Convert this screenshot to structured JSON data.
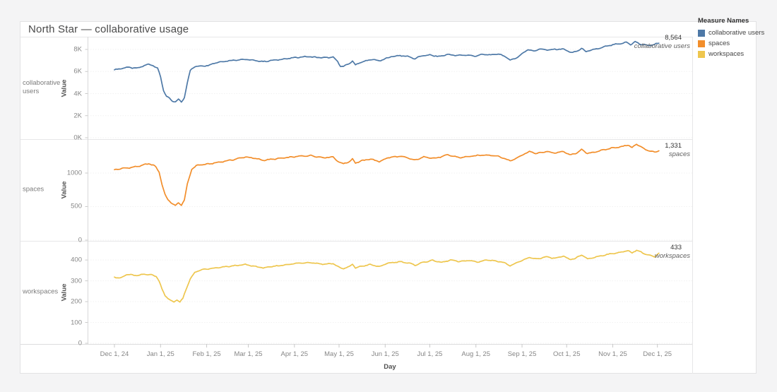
{
  "page": {
    "title": "North Star — collaborative usage"
  },
  "legend": {
    "title": "Measure Names",
    "items": [
      {
        "label": "collaborative users",
        "color": "#4e79a7",
        "highlighted": true
      },
      {
        "label": "spaces",
        "color": "#f28e2b",
        "highlighted": false
      },
      {
        "label": "workspaces",
        "color": "#eec64e",
        "highlighted": false
      }
    ]
  },
  "axes": {
    "x_title": "Day",
    "y_title": "Value",
    "x_tick_labels": [
      "Dec 1, 24",
      "Jan 1, 25",
      "Feb 1, 25",
      "Mar 1, 25",
      "Apr 1, 25",
      "May 1, 25",
      "Jun 1, 25",
      "Jul 1, 25",
      "Aug 1, 25",
      "Sep 1, 25",
      "Oct 1, 25",
      "Nov 1, 25",
      "Dec 1, 25"
    ]
  },
  "chart_data": {
    "type": "line",
    "x_unit": "days since Dec 1, 2024",
    "x_range": [
      0,
      366
    ],
    "grid": "faint horizontal gridlines at y ticks",
    "legend_position": "top-right",
    "panels": [
      {
        "row_label": "collaborative users",
        "color": "#4e79a7",
        "y_domain": [
          0,
          9152
        ],
        "y_ticks": [
          {
            "v": 0,
            "label": "0K"
          },
          {
            "v": 2000,
            "label": "2K"
          },
          {
            "v": 4000,
            "label": "4K"
          },
          {
            "v": 6000,
            "label": "6K"
          },
          {
            "v": 8000,
            "label": "8K"
          }
        ],
        "end_annotation": {
          "value": "8,564",
          "label": "collaborative users"
        },
        "daily_noise": 55,
        "anchors": [
          [
            0,
            6150
          ],
          [
            4,
            6250
          ],
          [
            8,
            6380
          ],
          [
            12,
            6330
          ],
          [
            16,
            6300
          ],
          [
            20,
            6550
          ],
          [
            23,
            6650
          ],
          [
            26,
            6550
          ],
          [
            29,
            6300
          ],
          [
            31,
            5500
          ],
          [
            33,
            4300
          ],
          [
            35,
            3750
          ],
          [
            37,
            3550
          ],
          [
            39,
            3300
          ],
          [
            41,
            3250
          ],
          [
            43,
            3500
          ],
          [
            45,
            3200
          ],
          [
            47,
            3650
          ],
          [
            49,
            5000
          ],
          [
            51,
            6100
          ],
          [
            54,
            6450
          ],
          [
            58,
            6500
          ],
          [
            63,
            6550
          ],
          [
            68,
            6800
          ],
          [
            75,
            6950
          ],
          [
            82,
            7050
          ],
          [
            88,
            7100
          ],
          [
            94,
            7000
          ],
          [
            100,
            6900
          ],
          [
            106,
            7000
          ],
          [
            112,
            7100
          ],
          [
            118,
            7200
          ],
          [
            124,
            7300
          ],
          [
            130,
            7350
          ],
          [
            136,
            7280
          ],
          [
            142,
            7250
          ],
          [
            147,
            7300
          ],
          [
            150,
            6900
          ],
          [
            152,
            6500
          ],
          [
            154,
            6450
          ],
          [
            157,
            6650
          ],
          [
            160,
            6950
          ],
          [
            162,
            6600
          ],
          [
            165,
            6800
          ],
          [
            170,
            7000
          ],
          [
            174,
            7100
          ],
          [
            178,
            6950
          ],
          [
            182,
            7150
          ],
          [
            186,
            7350
          ],
          [
            192,
            7450
          ],
          [
            198,
            7350
          ],
          [
            202,
            7150
          ],
          [
            206,
            7400
          ],
          [
            212,
            7500
          ],
          [
            218,
            7350
          ],
          [
            224,
            7550
          ],
          [
            230,
            7450
          ],
          [
            236,
            7500
          ],
          [
            242,
            7400
          ],
          [
            248,
            7550
          ],
          [
            254,
            7500
          ],
          [
            258,
            7600
          ],
          [
            262,
            7400
          ],
          [
            266,
            7050
          ],
          [
            269,
            7150
          ],
          [
            272,
            7400
          ],
          [
            275,
            7700
          ],
          [
            278,
            8000
          ],
          [
            282,
            7850
          ],
          [
            286,
            8050
          ],
          [
            291,
            7950
          ],
          [
            296,
            8000
          ],
          [
            301,
            8050
          ],
          [
            305,
            7850
          ],
          [
            308,
            7700
          ],
          [
            311,
            7850
          ],
          [
            314,
            8100
          ],
          [
            317,
            7800
          ],
          [
            321,
            7950
          ],
          [
            326,
            8100
          ],
          [
            331,
            8300
          ],
          [
            336,
            8450
          ],
          [
            340,
            8500
          ],
          [
            344,
            8650
          ],
          [
            347,
            8450
          ],
          [
            350,
            8700
          ],
          [
            353,
            8500
          ],
          [
            357,
            8400
          ],
          [
            360,
            8350
          ],
          [
            363,
            8480
          ],
          [
            366,
            8564
          ]
        ]
      },
      {
        "row_label": "spaces",
        "color": "#f28e2b",
        "y_domain": [
          0,
          1505
        ],
        "y_ticks": [
          {
            "v": 0,
            "label": "0"
          },
          {
            "v": 500,
            "label": "500"
          },
          {
            "v": 1000,
            "label": "1000"
          }
        ],
        "end_annotation": {
          "value": "1,331",
          "label": "spaces"
        },
        "daily_noise": 9,
        "anchors": [
          [
            0,
            1050
          ],
          [
            6,
            1070
          ],
          [
            12,
            1085
          ],
          [
            18,
            1110
          ],
          [
            23,
            1140
          ],
          [
            27,
            1110
          ],
          [
            30,
            1020
          ],
          [
            32,
            830
          ],
          [
            34,
            680
          ],
          [
            36,
            600
          ],
          [
            39,
            545
          ],
          [
            41,
            510
          ],
          [
            43,
            560
          ],
          [
            45,
            520
          ],
          [
            47,
            600
          ],
          [
            49,
            830
          ],
          [
            52,
            1060
          ],
          [
            56,
            1120
          ],
          [
            62,
            1130
          ],
          [
            70,
            1160
          ],
          [
            80,
            1200
          ],
          [
            88,
            1240
          ],
          [
            94,
            1220
          ],
          [
            100,
            1190
          ],
          [
            108,
            1210
          ],
          [
            116,
            1230
          ],
          [
            124,
            1250
          ],
          [
            132,
            1260
          ],
          [
            140,
            1230
          ],
          [
            147,
            1240
          ],
          [
            151,
            1160
          ],
          [
            154,
            1140
          ],
          [
            158,
            1170
          ],
          [
            160,
            1210
          ],
          [
            162,
            1150
          ],
          [
            166,
            1180
          ],
          [
            172,
            1210
          ],
          [
            178,
            1170
          ],
          [
            184,
            1230
          ],
          [
            192,
            1250
          ],
          [
            198,
            1220
          ],
          [
            202,
            1190
          ],
          [
            208,
            1240
          ],
          [
            216,
            1220
          ],
          [
            224,
            1270
          ],
          [
            232,
            1230
          ],
          [
            240,
            1250
          ],
          [
            248,
            1270
          ],
          [
            256,
            1260
          ],
          [
            262,
            1220
          ],
          [
            266,
            1180
          ],
          [
            270,
            1220
          ],
          [
            275,
            1280
          ],
          [
            279,
            1320
          ],
          [
            284,
            1290
          ],
          [
            290,
            1320
          ],
          [
            296,
            1300
          ],
          [
            302,
            1320
          ],
          [
            306,
            1270
          ],
          [
            310,
            1290
          ],
          [
            314,
            1350
          ],
          [
            318,
            1290
          ],
          [
            324,
            1320
          ],
          [
            330,
            1350
          ],
          [
            336,
            1380
          ],
          [
            341,
            1390
          ],
          [
            345,
            1420
          ],
          [
            348,
            1380
          ],
          [
            351,
            1430
          ],
          [
            354,
            1390
          ],
          [
            357,
            1350
          ],
          [
            360,
            1330
          ],
          [
            363,
            1310
          ],
          [
            366,
            1331
          ]
        ]
      },
      {
        "row_label": "workspaces",
        "color": "#eec64e",
        "y_domain": [
          0,
          492
        ],
        "y_ticks": [
          {
            "v": 0,
            "label": "0"
          },
          {
            "v": 100,
            "label": "100"
          },
          {
            "v": 200,
            "label": "200"
          },
          {
            "v": 300,
            "label": "300"
          },
          {
            "v": 400,
            "label": "400"
          }
        ],
        "end_annotation": {
          "value": "433",
          "label": "workspaces"
        },
        "daily_noise": 2.6,
        "anchors": [
          [
            0,
            318
          ],
          [
            4,
            312
          ],
          [
            8,
            330
          ],
          [
            12,
            328
          ],
          [
            16,
            325
          ],
          [
            20,
            332
          ],
          [
            24,
            330
          ],
          [
            28,
            322
          ],
          [
            30,
            300
          ],
          [
            32,
            260
          ],
          [
            34,
            230
          ],
          [
            36,
            215
          ],
          [
            38,
            205
          ],
          [
            40,
            197
          ],
          [
            42,
            210
          ],
          [
            44,
            198
          ],
          [
            46,
            215
          ],
          [
            48,
            255
          ],
          [
            51,
            310
          ],
          [
            54,
            340
          ],
          [
            58,
            352
          ],
          [
            64,
            358
          ],
          [
            72,
            365
          ],
          [
            80,
            372
          ],
          [
            88,
            378
          ],
          [
            94,
            370
          ],
          [
            100,
            362
          ],
          [
            108,
            370
          ],
          [
            116,
            378
          ],
          [
            124,
            385
          ],
          [
            132,
            388
          ],
          [
            140,
            380
          ],
          [
            147,
            383
          ],
          [
            151,
            365
          ],
          [
            154,
            358
          ],
          [
            158,
            368
          ],
          [
            160,
            380
          ],
          [
            162,
            362
          ],
          [
            166,
            370
          ],
          [
            172,
            378
          ],
          [
            178,
            368
          ],
          [
            184,
            385
          ],
          [
            192,
            392
          ],
          [
            198,
            385
          ],
          [
            202,
            375
          ],
          [
            208,
            390
          ],
          [
            214,
            398
          ],
          [
            220,
            388
          ],
          [
            226,
            400
          ],
          [
            232,
            392
          ],
          [
            238,
            398
          ],
          [
            244,
            390
          ],
          [
            250,
            400
          ],
          [
            256,
            396
          ],
          [
            262,
            388
          ],
          [
            266,
            372
          ],
          [
            270,
            385
          ],
          [
            275,
            400
          ],
          [
            279,
            412
          ],
          [
            284,
            405
          ],
          [
            290,
            415
          ],
          [
            296,
            408
          ],
          [
            302,
            418
          ],
          [
            306,
            402
          ],
          [
            310,
            408
          ],
          [
            314,
            425
          ],
          [
            318,
            405
          ],
          [
            324,
            415
          ],
          [
            330,
            425
          ],
          [
            336,
            432
          ],
          [
            341,
            438
          ],
          [
            345,
            445
          ],
          [
            348,
            435
          ],
          [
            351,
            447
          ],
          [
            354,
            438
          ],
          [
            357,
            428
          ],
          [
            360,
            422
          ],
          [
            363,
            415
          ],
          [
            366,
            433
          ]
        ]
      }
    ]
  }
}
